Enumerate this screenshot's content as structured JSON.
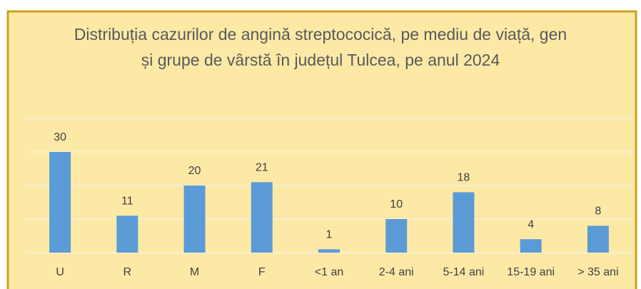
{
  "chart_data": {
    "type": "bar",
    "title": "Distribuția cazurilor de angină streptococică, pe mediu de viață, gen și grupe de vârstă în județul Tulcea, pe anul 2024",
    "categories": [
      "U",
      "R",
      "M",
      "F",
      "<1 an",
      "2-4 ani",
      "5-14 ani",
      "15-19 ani",
      "> 35 ani"
    ],
    "values": [
      30,
      11,
      20,
      21,
      1,
      10,
      18,
      4,
      8
    ],
    "color": "#5b9bd5",
    "ylim": [
      0,
      40
    ],
    "yticks": [
      0,
      10,
      20,
      30,
      40
    ],
    "grid": true
  }
}
